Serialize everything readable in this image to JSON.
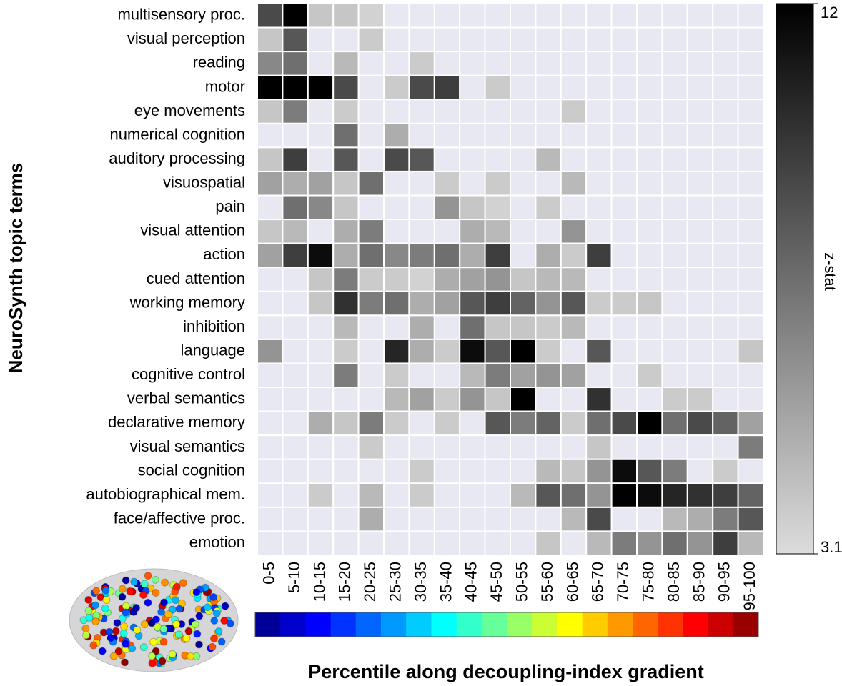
{
  "chart_data": {
    "type": "heatmap",
    "y_label": "NeuroSynth topic terms",
    "x_label": "Percentile along decoupling-index gradient",
    "colorbar_label": "z-stat",
    "zlim": [
      3.1,
      12
    ],
    "zticks": [
      3.1,
      12
    ],
    "null_color": "#e8e8f2",
    "categories": [
      "0-5",
      "5-10",
      "10-15",
      "15-20",
      "20-25",
      "25-30",
      "30-35",
      "35-40",
      "40-45",
      "45-50",
      "50-55",
      "55-60",
      "60-65",
      "65-70",
      "70-75",
      "75-80",
      "80-85",
      "85-90",
      "90-95",
      "95-100"
    ],
    "rows": [
      "multisensory proc.",
      "visual perception",
      "reading",
      "motor",
      "eye movements",
      "numerical cognition",
      "auditory processing",
      "visuospatial",
      "pain",
      "visual attention",
      "action",
      "cued attention",
      "working memory",
      "inhibition",
      "language",
      "cognitive control",
      "verbal semantics",
      "declarative memory",
      "visual semantics",
      "social cognition",
      "autobiographical mem.",
      "face/affective proc.",
      "emotion"
    ],
    "values": [
      [
        9,
        12,
        4,
        4,
        3.5,
        null,
        null,
        null,
        null,
        null,
        null,
        null,
        null,
        null,
        null,
        null,
        null,
        null,
        null,
        null
      ],
      [
        4,
        8.5,
        null,
        null,
        3.8,
        null,
        null,
        null,
        null,
        null,
        null,
        null,
        null,
        null,
        null,
        null,
        null,
        null,
        null,
        null
      ],
      [
        6.5,
        7.5,
        null,
        4.5,
        null,
        null,
        3.8,
        null,
        null,
        null,
        null,
        null,
        null,
        null,
        null,
        null,
        null,
        null,
        null,
        null
      ],
      [
        12,
        12,
        12,
        9,
        null,
        3.8,
        9,
        9.5,
        null,
        3.8,
        null,
        null,
        null,
        null,
        null,
        null,
        null,
        null,
        null,
        null
      ],
      [
        4,
        7,
        null,
        3.8,
        null,
        null,
        null,
        null,
        null,
        null,
        null,
        null,
        3.8,
        null,
        null,
        null,
        null,
        null,
        null,
        null
      ],
      [
        null,
        null,
        null,
        7.5,
        null,
        5,
        null,
        null,
        null,
        null,
        null,
        null,
        null,
        null,
        null,
        null,
        null,
        null,
        null,
        null
      ],
      [
        4,
        9.5,
        null,
        8.5,
        null,
        9,
        8.5,
        null,
        null,
        null,
        null,
        4.5,
        null,
        null,
        null,
        null,
        null,
        null,
        null,
        null
      ],
      [
        5.5,
        5,
        5.5,
        4,
        7.5,
        null,
        null,
        3.8,
        null,
        3.8,
        null,
        null,
        4.5,
        null,
        null,
        null,
        null,
        null,
        null,
        null
      ],
      [
        null,
        7.5,
        6.5,
        4,
        null,
        null,
        null,
        6,
        4,
        3.5,
        null,
        3.8,
        null,
        null,
        null,
        null,
        null,
        null,
        null,
        null
      ],
      [
        4,
        4.5,
        null,
        5,
        7,
        null,
        null,
        null,
        5,
        4.5,
        null,
        null,
        6,
        null,
        null,
        null,
        null,
        null,
        null,
        null
      ],
      [
        5.5,
        9.5,
        11.5,
        5,
        7.5,
        6.5,
        7,
        7.5,
        5,
        9.5,
        null,
        5,
        3.8,
        9.5,
        null,
        null,
        null,
        null,
        null,
        null
      ],
      [
        null,
        null,
        4,
        7,
        3.8,
        3.8,
        3.5,
        5,
        5.5,
        6,
        4,
        4.5,
        4.5,
        null,
        null,
        null,
        null,
        null,
        null,
        null
      ],
      [
        null,
        null,
        4,
        10,
        7,
        7.5,
        5,
        5.5,
        8.5,
        9.5,
        8,
        6,
        8.5,
        3.8,
        3.8,
        4,
        null,
        null,
        null,
        null
      ],
      [
        null,
        null,
        null,
        4.5,
        null,
        null,
        5,
        null,
        7.5,
        4,
        4,
        3.8,
        4.5,
        null,
        null,
        null,
        null,
        null,
        null,
        null
      ],
      [
        6,
        null,
        null,
        3.8,
        null,
        10.5,
        5,
        3.8,
        11.5,
        8.5,
        12,
        3.8,
        null,
        8.5,
        null,
        null,
        null,
        null,
        null,
        4
      ],
      [
        null,
        null,
        null,
        7,
        null,
        3.8,
        null,
        null,
        4.5,
        7,
        5.5,
        6,
        5.5,
        null,
        null,
        3.8,
        null,
        null,
        null,
        null
      ],
      [
        null,
        null,
        null,
        null,
        null,
        4.5,
        5.5,
        3.8,
        6,
        4,
        12,
        null,
        null,
        10,
        null,
        null,
        3.8,
        3.8,
        null,
        null
      ],
      [
        null,
        null,
        5,
        4,
        7,
        3.8,
        null,
        3.8,
        null,
        8.5,
        7,
        8,
        3.8,
        7.5,
        9,
        12,
        7.5,
        9,
        8,
        5.5
      ],
      [
        null,
        null,
        null,
        null,
        3.8,
        null,
        null,
        null,
        null,
        null,
        null,
        null,
        null,
        4,
        null,
        null,
        null,
        null,
        null,
        7
      ],
      [
        null,
        null,
        null,
        null,
        null,
        null,
        3.8,
        null,
        null,
        null,
        null,
        4.5,
        4,
        6,
        11.5,
        8.5,
        7,
        null,
        3.8,
        null
      ],
      [
        null,
        null,
        3.8,
        null,
        4.5,
        null,
        3.8,
        null,
        null,
        null,
        4.5,
        8.5,
        7.5,
        6,
        12,
        11.5,
        10.5,
        10,
        9.5,
        8
      ],
      [
        null,
        null,
        null,
        null,
        5,
        null,
        null,
        null,
        null,
        null,
        null,
        null,
        4.5,
        9,
        null,
        null,
        4.5,
        5,
        7,
        8.5
      ],
      [
        null,
        null,
        null,
        null,
        null,
        null,
        null,
        null,
        null,
        null,
        null,
        4,
        null,
        4.5,
        7,
        6,
        7.5,
        6,
        9.5,
        4.5
      ]
    ]
  }
}
